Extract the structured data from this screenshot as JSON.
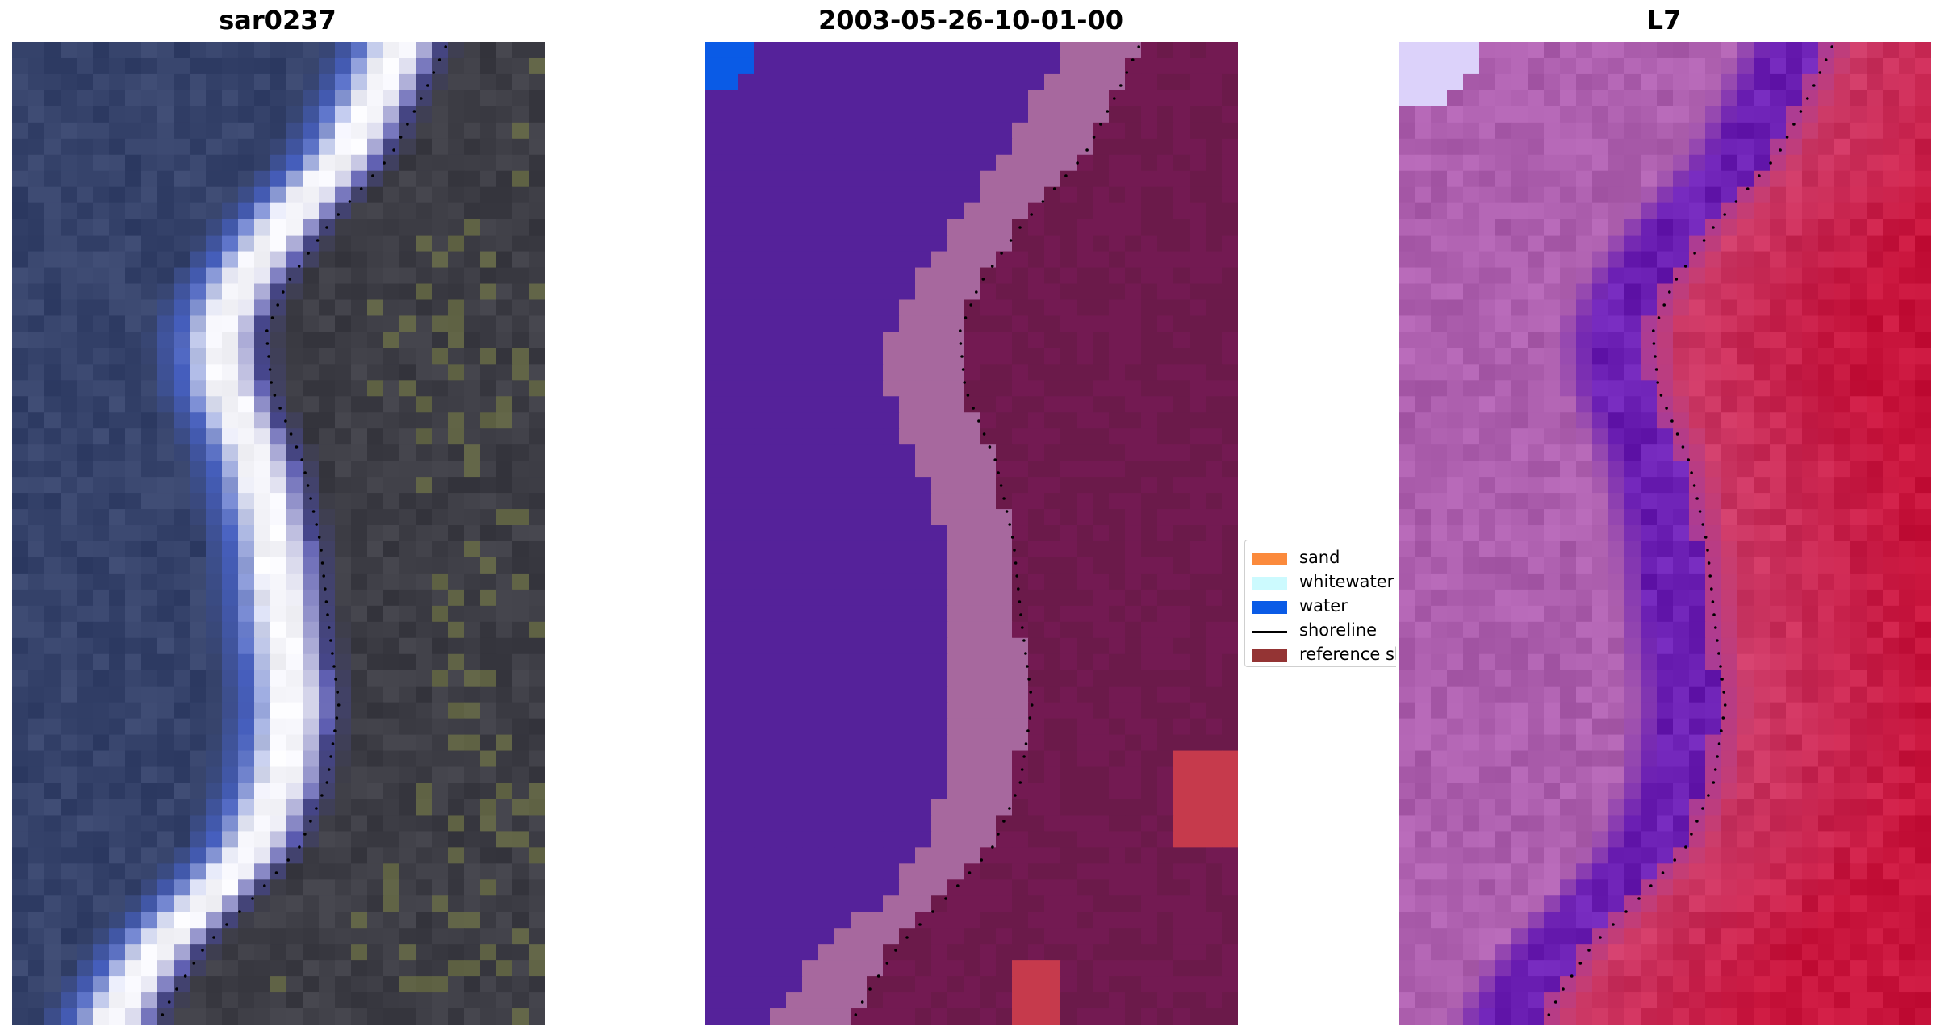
{
  "panels": [
    {
      "title": "sar0237",
      "kind": "rgb"
    },
    {
      "title": "2003-05-26-10-01-00",
      "kind": "classified"
    },
    {
      "title": "L7",
      "kind": "false-color"
    }
  ],
  "legend": {
    "items": [
      {
        "label": "sand",
        "color": "#fb8a3c",
        "type": "patch"
      },
      {
        "label": "whitewater",
        "color": "#ccfafe",
        "type": "patch"
      },
      {
        "label": "water",
        "color": "#0a5be6",
        "type": "patch"
      },
      {
        "label": "shoreline",
        "color": "#000000",
        "type": "line"
      },
      {
        "label": "reference shoreline",
        "color": "#943434",
        "type": "patch"
      }
    ]
  },
  "colors": {
    "water_class": "#55229a",
    "sand_class": "#a7689e",
    "land_class": "#731a52",
    "land_dark": "#6b1a4a",
    "red_patch": "#c63a4c",
    "corner_water": "#0a5be6",
    "rgb_sea": "#36436b",
    "rgb_surf": "#f5f5fa",
    "rgb_land": "#3d3d45",
    "fc_sea": "#ad5fae",
    "fc_band": "#6b1fb3",
    "fc_land": "#cc3d6b"
  }
}
